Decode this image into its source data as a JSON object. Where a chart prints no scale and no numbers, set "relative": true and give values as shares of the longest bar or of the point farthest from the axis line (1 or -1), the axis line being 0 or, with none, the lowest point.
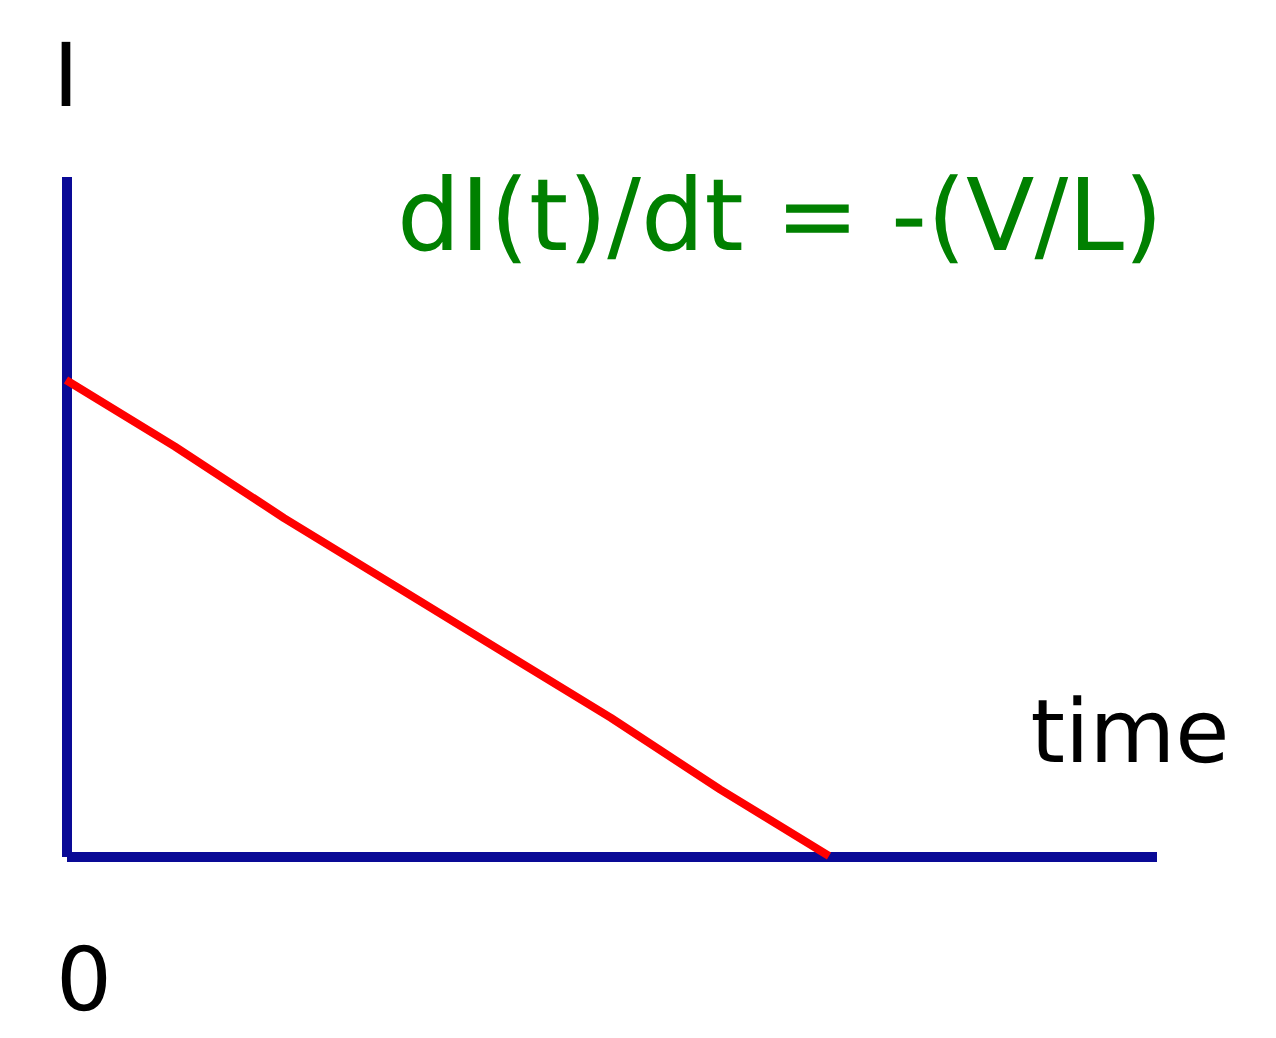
{
  "chart_data": {
    "type": "line",
    "relative": true,
    "ylabel": "I",
    "xlabel": "time",
    "annotations": [
      "dI(t)/dt = -(V/L)",
      "0"
    ],
    "categories": [
      null,
      null,
      null,
      null,
      null,
      null,
      null,
      null,
      null,
      null,
      null
    ],
    "series": [
      {
        "color": "#ff0000",
        "values": [
          1,
          0.86,
          0.71,
          0.57,
          0.43,
          0.29,
          0.14,
          0,
          null,
          null,
          null
        ]
      }
    ],
    "grid": false,
    "marker": "none",
    "line_style": "solid"
  }
}
